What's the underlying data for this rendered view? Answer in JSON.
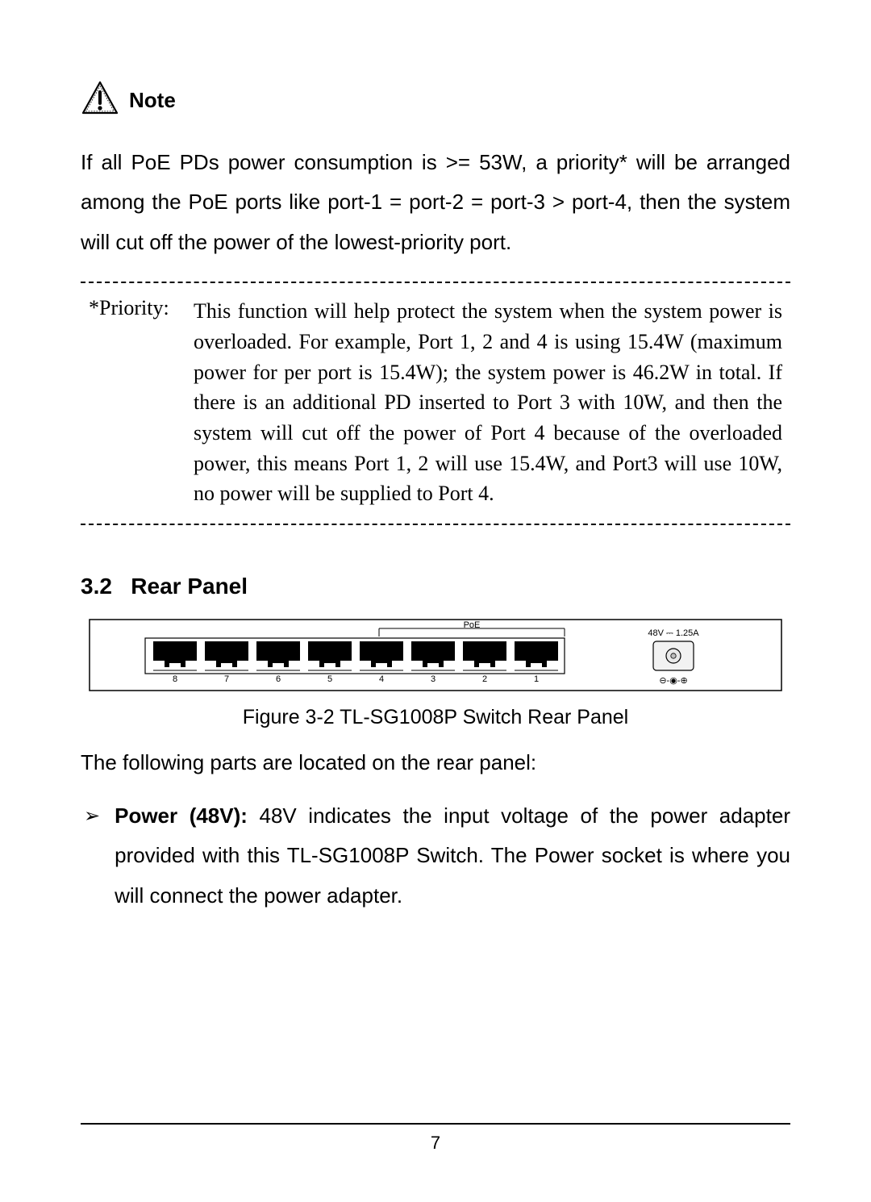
{
  "note": {
    "label": "Note",
    "body": "If all PoE PDs power consumption is >= 53W, a priority* will be arranged among the PoE ports like port-1 = port-2 = port-3 > port-4, then the system will cut off the power of the lowest-priority port."
  },
  "priority": {
    "label": "*Priority:",
    "text": "This function will help protect the system when the system power is overloaded. For example, Port 1, 2 and 4 is using 15.4W (maximum power for per port is 15.4W); the system power is 46.2W in total. If there is an additional PD inserted to Port 3 with 10W, and then the system will cut off the power of Port 4 because of the overloaded power, this means Port 1, 2 will use 15.4W, and Port3 will use 10W, no power will be supplied to Port 4."
  },
  "section": {
    "number": "3.2",
    "title": "Rear Panel"
  },
  "figure": {
    "caption": "Figure 3-2 TL-SG1008P Switch Rear Panel",
    "panel": {
      "poe_label": "PoE",
      "power_label": "48V ⎓ 1.25A",
      "polarity_label": "⊖-◉-⊕",
      "ports": [
        "8",
        "7",
        "6",
        "5",
        "4",
        "3",
        "2",
        "1"
      ],
      "colors": {
        "panel_bg": "#ffffff",
        "panel_border": "#000000",
        "port_fill": "#000000",
        "port_strip_bg": "#ffffff",
        "text": "#000000"
      }
    }
  },
  "intro": "The following parts are located on the rear panel:",
  "bullet": {
    "marker": "➢",
    "label": "Power (48V): ",
    "text": "48V indicates the input voltage of the power adapter provided with this TL-SG1008P Switch. The Power socket is where you will connect the power adapter."
  },
  "page_number": "7"
}
